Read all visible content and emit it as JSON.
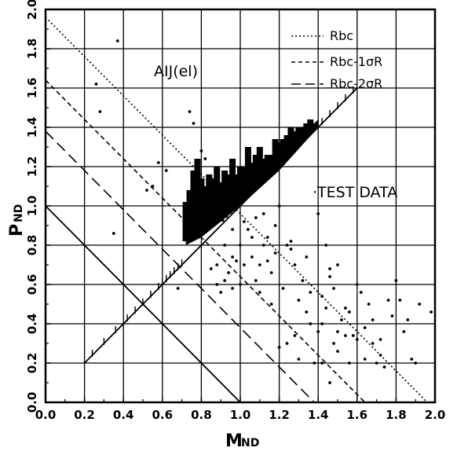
{
  "chart_data": {
    "type": "scatter",
    "xlabel": "M",
    "xlabel_sub": "ND",
    "ylabel": "P",
    "ylabel_sub": "ND",
    "xlim": [
      0.0,
      2.0
    ],
    "ylim": [
      0.0,
      2.0
    ],
    "grid": true,
    "x_ticks": [
      "0.0",
      "0.2",
      "0.4",
      "0.6",
      "0.8",
      "1.0",
      "1.2",
      "1.4",
      "1.6",
      "1.8",
      "2.0"
    ],
    "y_ticks": [
      "0.0",
      "0.2",
      "0.4",
      "0.6",
      "0.8",
      "1.0",
      "1.2",
      "1.4",
      "1.6",
      "1.8",
      "2.0"
    ],
    "annotation_title": "AIJ(el)",
    "legend": [
      {
        "label": "Rbc",
        "style": "dotted"
      },
      {
        "label": "Rbc-1σR",
        "style": "short-dash"
      },
      {
        "label": "Rbc-2σR",
        "style": "long-dash"
      }
    ],
    "test_data_label": "·TEST DATA",
    "lines": [
      {
        "name": "Rbc",
        "style": "dotted",
        "points": [
          [
            0.0,
            1.96
          ],
          [
            1.96,
            0.0
          ]
        ]
      },
      {
        "name": "Rbc-1σR",
        "style": "short-dash",
        "points": [
          [
            0.0,
            1.64
          ],
          [
            1.64,
            0.0
          ]
        ]
      },
      {
        "name": "Rbc-2σR",
        "style": "long-dash",
        "points": [
          [
            0.0,
            1.38
          ],
          [
            1.38,
            0.0
          ]
        ]
      },
      {
        "name": "solid-diagonal",
        "style": "solid",
        "points": [
          [
            0.0,
            1.0
          ],
          [
            1.0,
            0.0
          ]
        ]
      },
      {
        "name": "equal-ratio",
        "style": "solid",
        "points": [
          [
            0.2,
            0.2
          ],
          [
            1.6,
            1.6
          ]
        ]
      }
    ],
    "dense_band": [
      [
        0.72,
        0.82,
        1.02
      ],
      [
        0.74,
        0.84,
        1.08
      ],
      [
        0.76,
        0.86,
        1.18
      ],
      [
        0.78,
        0.86,
        1.24
      ],
      [
        0.8,
        0.88,
        1.14
      ],
      [
        0.82,
        0.88,
        1.1
      ],
      [
        0.84,
        0.9,
        1.16
      ],
      [
        0.86,
        0.9,
        1.14
      ],
      [
        0.88,
        0.92,
        1.2
      ],
      [
        0.9,
        0.92,
        1.12
      ],
      [
        0.92,
        0.94,
        1.18
      ],
      [
        0.94,
        0.96,
        1.16
      ],
      [
        0.96,
        0.98,
        1.24
      ],
      [
        0.98,
        1.0,
        1.16
      ],
      [
        1.0,
        1.02,
        1.2
      ],
      [
        1.02,
        1.04,
        1.2
      ],
      [
        1.04,
        1.06,
        1.3
      ],
      [
        1.06,
        1.08,
        1.22
      ],
      [
        1.08,
        1.1,
        1.26
      ],
      [
        1.1,
        1.12,
        1.3
      ],
      [
        1.12,
        1.14,
        1.24
      ],
      [
        1.14,
        1.16,
        1.26
      ],
      [
        1.16,
        1.18,
        1.26
      ],
      [
        1.18,
        1.2,
        1.34
      ],
      [
        1.2,
        1.22,
        1.32
      ],
      [
        1.22,
        1.24,
        1.34
      ],
      [
        1.24,
        1.26,
        1.36
      ],
      [
        1.26,
        1.28,
        1.4
      ],
      [
        1.28,
        1.3,
        1.38
      ],
      [
        1.3,
        1.32,
        1.4
      ],
      [
        1.32,
        1.34,
        1.4
      ],
      [
        1.34,
        1.36,
        1.42
      ],
      [
        1.36,
        1.38,
        1.44
      ],
      [
        1.38,
        1.4,
        1.42
      ]
    ],
    "ticks_along_diagonal": [
      0.24,
      0.3,
      0.36,
      0.42,
      0.46,
      0.5,
      0.54,
      0.58,
      0.6,
      0.62,
      0.64,
      0.66,
      0.68,
      0.7,
      1.42,
      1.46,
      1.5,
      1.54,
      1.58
    ],
    "scatter_points": [
      [
        0.26,
        1.62
      ],
      [
        0.28,
        1.48
      ],
      [
        0.37,
        1.84
      ],
      [
        0.35,
        0.86
      ],
      [
        0.52,
        1.08
      ],
      [
        0.55,
        1.1
      ],
      [
        0.58,
        1.22
      ],
      [
        0.62,
        1.18
      ],
      [
        0.68,
        0.58
      ],
      [
        0.74,
        1.48
      ],
      [
        0.76,
        1.42
      ],
      [
        0.77,
        1.16
      ],
      [
        0.8,
        1.28
      ],
      [
        0.82,
        1.24
      ],
      [
        0.85,
        0.68
      ],
      [
        0.88,
        0.7
      ],
      [
        0.9,
        0.56
      ],
      [
        0.92,
        0.62
      ],
      [
        0.94,
        0.66
      ],
      [
        0.96,
        0.58
      ],
      [
        0.98,
        0.72
      ],
      [
        1.0,
        0.6
      ],
      [
        1.02,
        0.92
      ],
      [
        1.04,
        0.88
      ],
      [
        1.06,
        0.74
      ],
      [
        1.08,
        0.94
      ],
      [
        1.1,
        0.7
      ],
      [
        1.12,
        0.96
      ],
      [
        1.14,
        0.84
      ],
      [
        1.16,
        0.66
      ],
      [
        1.18,
        0.9
      ],
      [
        1.2,
        1.0
      ],
      [
        1.22,
        0.58
      ],
      [
        1.24,
        0.8
      ],
      [
        1.26,
        0.78
      ],
      [
        1.28,
        0.7
      ],
      [
        1.3,
        0.52
      ],
      [
        1.32,
        0.62
      ],
      [
        1.34,
        0.46
      ],
      [
        1.36,
        0.4
      ],
      [
        1.38,
        0.2
      ],
      [
        1.4,
        0.36
      ],
      [
        1.42,
        0.54
      ],
      [
        1.44,
        0.48
      ],
      [
        1.46,
        0.68
      ],
      [
        1.48,
        0.58
      ],
      [
        1.5,
        0.26
      ],
      [
        1.52,
        0.42
      ],
      [
        1.54,
        0.48
      ],
      [
        1.56,
        0.2
      ],
      [
        1.58,
        0.34
      ],
      [
        1.6,
        0.6
      ],
      [
        1.62,
        0.56
      ],
      [
        1.64,
        0.22
      ],
      [
        1.66,
        0.5
      ],
      [
        1.68,
        0.42
      ],
      [
        1.7,
        0.2
      ],
      [
        1.72,
        0.32
      ],
      [
        1.74,
        0.18
      ],
      [
        1.76,
        0.52
      ],
      [
        1.78,
        0.44
      ],
      [
        1.8,
        0.62
      ],
      [
        1.82,
        0.52
      ],
      [
        1.84,
        0.36
      ],
      [
        1.86,
        0.42
      ],
      [
        1.88,
        0.22
      ],
      [
        1.9,
        0.2
      ],
      [
        1.92,
        0.5
      ],
      [
        1.98,
        0.46
      ],
      [
        1.4,
        0.96
      ],
      [
        1.44,
        0.8
      ],
      [
        1.5,
        0.7
      ],
      [
        1.46,
        0.64
      ],
      [
        1.34,
        0.74
      ],
      [
        1.26,
        0.82
      ],
      [
        1.18,
        0.76
      ],
      [
        1.12,
        0.8
      ],
      [
        1.08,
        0.62
      ],
      [
        1.02,
        0.7
      ],
      [
        0.96,
        0.74
      ],
      [
        0.92,
        0.8
      ],
      [
        1.2,
        0.28
      ],
      [
        1.28,
        0.34
      ],
      [
        1.24,
        0.3
      ],
      [
        1.36,
        0.56
      ],
      [
        1.54,
        0.34
      ],
      [
        1.6,
        0.32
      ],
      [
        1.68,
        0.3
      ],
      [
        1.72,
        0.24
      ],
      [
        1.42,
        0.2
      ],
      [
        1.48,
        0.3
      ],
      [
        1.56,
        0.46
      ],
      [
        1.64,
        0.38
      ],
      [
        1.3,
        0.22
      ],
      [
        0.96,
        0.88
      ],
      [
        1.0,
        0.8
      ],
      [
        1.06,
        0.84
      ],
      [
        1.14,
        0.72
      ],
      [
        0.88,
        0.6
      ],
      [
        1.1,
        0.56
      ],
      [
        1.16,
        0.5
      ],
      [
        1.42,
        0.4
      ],
      [
        1.5,
        0.36
      ],
      [
        1.46,
        0.1
      ]
    ]
  }
}
